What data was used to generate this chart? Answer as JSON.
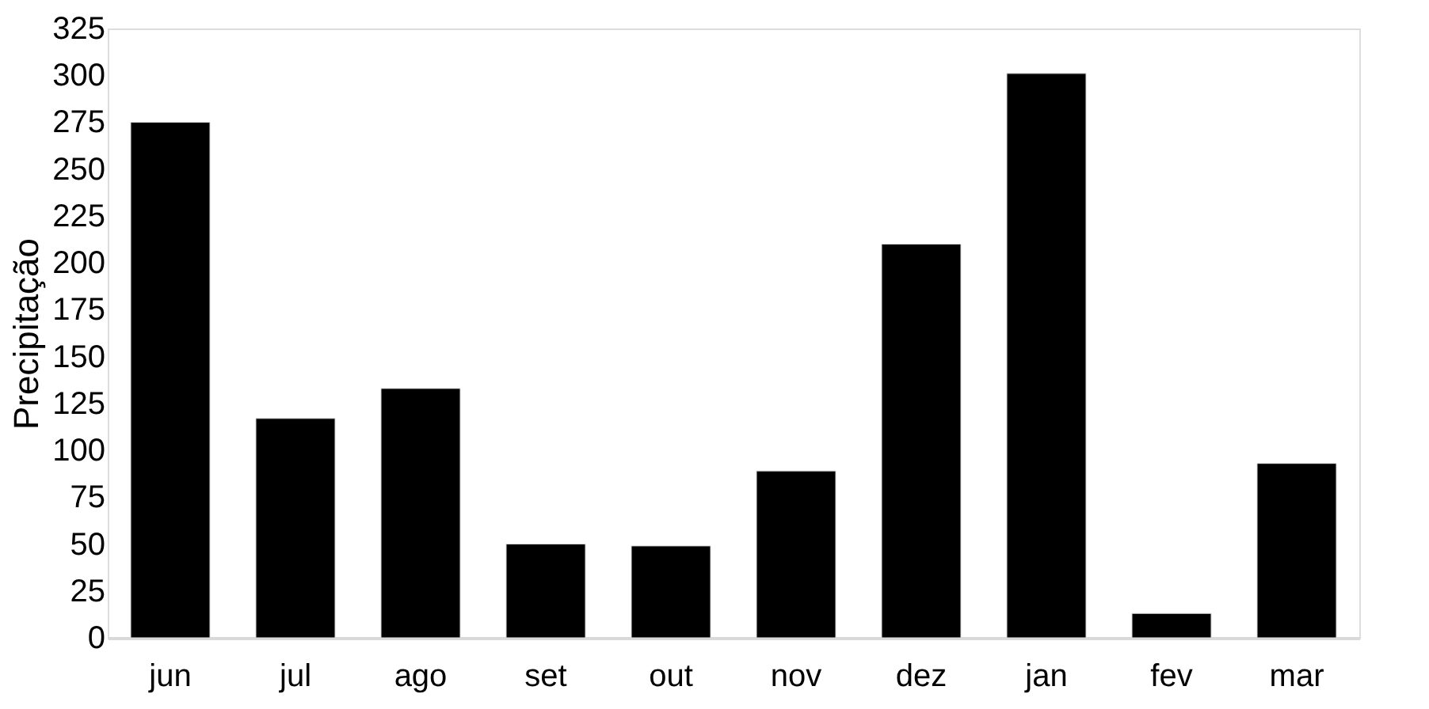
{
  "chart_data": {
    "type": "bar",
    "ylabel": "Precipitação",
    "categories": [
      "jun",
      "jul",
      "ago",
      "set",
      "out",
      "nov",
      "dez",
      "jan",
      "fev",
      "mar"
    ],
    "values": [
      275,
      117,
      133,
      50,
      49,
      89,
      210,
      301,
      13,
      93
    ],
    "color": "#000000",
    "ylim": [
      0,
      325
    ],
    "yticks": [
      0,
      25,
      50,
      75,
      100,
      125,
      150,
      175,
      200,
      225,
      250,
      275,
      300,
      325
    ],
    "grid": false
  }
}
